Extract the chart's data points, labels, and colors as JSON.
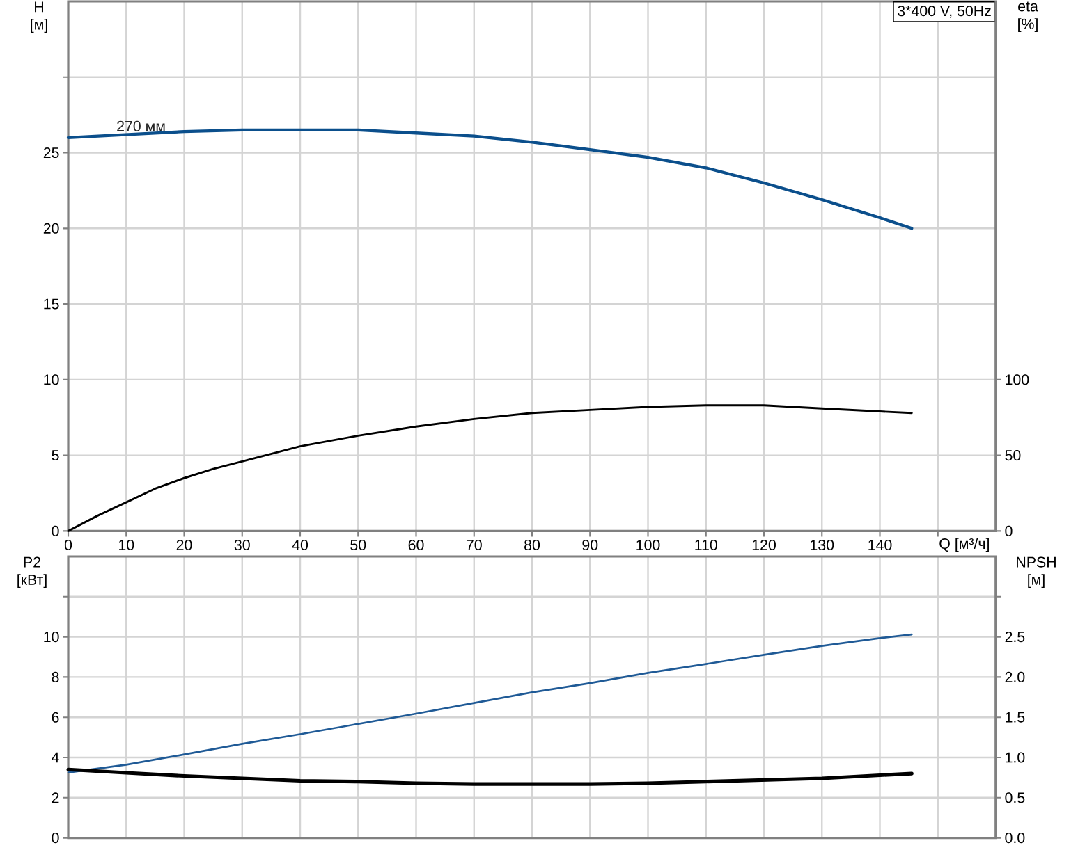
{
  "chart_data": [
    {
      "type": "line",
      "title": "3*400 V, 50Hz",
      "xlabel": "Q [м³/ч]",
      "ylabel": "H [м]",
      "y2label": "eta [%]",
      "xlim": [
        0,
        160
      ],
      "xticks": [
        0,
        10,
        20,
        30,
        40,
        50,
        60,
        70,
        80,
        90,
        100,
        110,
        120,
        130,
        140,
        {
          "value": 150,
          "label": null
        }
      ],
      "ylim": [
        0,
        35
      ],
      "yticks": [
        0,
        5,
        10,
        15,
        20,
        25,
        {
          "value": 30,
          "label": null
        }
      ],
      "y2lim": [
        0,
        350
      ],
      "y2ticks": [
        0,
        50,
        100
      ],
      "grid": true,
      "series": [
        {
          "name": "270 мм",
          "color": "#0b4f8c",
          "x": [
            0,
            10,
            20,
            30,
            40,
            50,
            60,
            70,
            80,
            90,
            100,
            110,
            120,
            130,
            140,
            145.5
          ],
          "values": [
            26.0,
            26.2,
            26.4,
            26.5,
            26.5,
            26.5,
            26.3,
            26.1,
            25.7,
            25.2,
            24.7,
            24.0,
            23.0,
            21.9,
            20.7,
            20.0
          ]
        },
        {
          "color": "#000000",
          "axis": "y2",
          "x": [
            0,
            5,
            10,
            15,
            20,
            25,
            30,
            40,
            50,
            60,
            70,
            80,
            90,
            100,
            110,
            120,
            130,
            140,
            145.5
          ],
          "values": [
            0,
            10,
            19,
            28,
            35,
            41,
            46,
            56,
            63,
            69,
            74,
            78,
            80,
            82,
            83,
            83,
            81,
            79,
            78
          ]
        }
      ]
    },
    {
      "type": "line",
      "ylabel": "P2 [кВт]",
      "y2label": "NPSH [м]",
      "xlim": [
        0,
        160
      ],
      "xticks": [
        0,
        10,
        20,
        30,
        40,
        50,
        60,
        70,
        80,
        90,
        100,
        110,
        120,
        130,
        140,
        {
          "value": 150,
          "label": null
        }
      ],
      "ylim": [
        0,
        14
      ],
      "yticks": [
        0,
        2,
        4,
        6,
        8,
        10,
        {
          "value": 12,
          "label": null
        }
      ],
      "y2lim": [
        0,
        3.5
      ],
      "y2ticks": [
        {
          "value": 0,
          "label": "0.0"
        },
        0.5,
        {
          "value": 1,
          "label": "1.0"
        },
        1.5,
        {
          "value": 2,
          "label": "2.0"
        },
        2.5,
        {
          "value": 3,
          "label": null
        }
      ],
      "grid": true,
      "tick_labels": "y",
      "series": [
        {
          "color": "#1f5a96",
          "x": [
            0,
            10,
            20,
            30,
            40,
            50,
            60,
            70,
            80,
            90,
            100,
            110,
            120,
            130,
            140,
            145.5
          ],
          "values": [
            3.25,
            3.64,
            4.15,
            4.68,
            5.16,
            5.67,
            6.18,
            6.71,
            7.24,
            7.7,
            8.21,
            8.65,
            9.11,
            9.55,
            9.94,
            10.12
          ]
        },
        {
          "color": "#000000",
          "axis": "y2",
          "x": [
            0,
            10,
            20,
            30,
            40,
            50,
            60,
            70,
            80,
            90,
            100,
            110,
            120,
            130,
            140,
            145.5
          ],
          "values": [
            0.85,
            0.81,
            0.77,
            0.74,
            0.71,
            0.7,
            0.68,
            0.67,
            0.67,
            0.67,
            0.68,
            0.7,
            0.72,
            0.74,
            0.78,
            0.8
          ]
        }
      ]
    }
  ]
}
